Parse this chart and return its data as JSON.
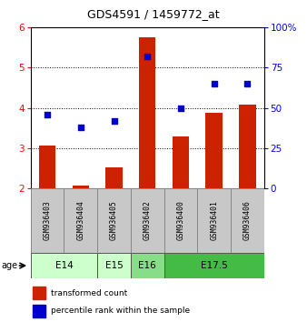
{
  "title": "GDS4591 / 1459772_at",
  "samples": [
    "GSM936403",
    "GSM936404",
    "GSM936405",
    "GSM936402",
    "GSM936400",
    "GSM936401",
    "GSM936406"
  ],
  "transformed_counts": [
    3.07,
    2.07,
    2.52,
    5.75,
    3.28,
    3.88,
    4.08
  ],
  "percentile_ranks": [
    46,
    38,
    42,
    82,
    50,
    65,
    65
  ],
  "age_groups": [
    {
      "label": "E14",
      "indices": [
        0,
        1
      ],
      "color": "#ccffcc"
    },
    {
      "label": "E15",
      "indices": [
        2
      ],
      "color": "#ccffcc"
    },
    {
      "label": "E16",
      "indices": [
        3
      ],
      "color": "#88dd88"
    },
    {
      "label": "E17.5",
      "indices": [
        4,
        5,
        6
      ],
      "color": "#44bb44"
    }
  ],
  "ylim_left": [
    2,
    6
  ],
  "ylim_right": [
    0,
    100
  ],
  "yticks_left": [
    2,
    3,
    4,
    5,
    6
  ],
  "yticks_right": [
    0,
    25,
    50,
    75,
    100
  ],
  "bar_color": "#cc2200",
  "scatter_color": "#0000cc",
  "bar_bottom": 2.0,
  "legend_labels": [
    "transformed count",
    "percentile rank within the sample"
  ],
  "sample_box_color": "#c8c8c8"
}
